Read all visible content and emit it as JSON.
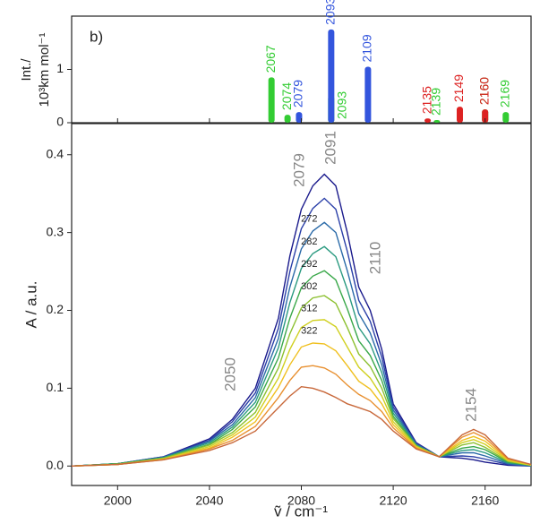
{
  "chart_data": [
    {
      "type": "stick",
      "panel_label": "b)",
      "ylabel": [
        "Int./",
        "10³km mol⁻¹"
      ],
      "xlim": [
        1980,
        2180
      ],
      "ylim": [
        0,
        2.0
      ],
      "yticks": [
        0,
        1
      ],
      "series": [
        {
          "color": "#33cc33",
          "x": [
            2067,
            2074,
            2093,
            2139,
            2160,
            2169
          ],
          "values": [
            0.85,
            0.15,
            0.5,
            0.05,
            0.25,
            0.2
          ]
        },
        {
          "color": "#3355dd",
          "x": [
            2079,
            2093,
            2109
          ],
          "values": [
            0.2,
            1.75,
            1.05
          ]
        },
        {
          "color": "#dd2222",
          "x": [
            2135,
            2149,
            2160
          ],
          "values": [
            0.08,
            0.3,
            0.25
          ]
        }
      ]
    },
    {
      "type": "line",
      "xlabel": "ṽ / cm⁻¹",
      "ylabel": "A / a.u.",
      "xlim": [
        1980,
        2180
      ],
      "xticks": [
        2000,
        2040,
        2080,
        2120,
        2160
      ],
      "ylim": [
        -0.025,
        0.44
      ],
      "yticks": [
        {
          "value": 0,
          "label": "0.0"
        },
        0.1,
        0.2,
        0.3,
        0.4
      ],
      "annotations": [
        "2050",
        "2079",
        "2091",
        "2110",
        "2154"
      ],
      "x": [
        1980,
        2000,
        2020,
        2040,
        2050,
        2060,
        2070,
        2075,
        2080,
        2085,
        2090,
        2095,
        2100,
        2105,
        2110,
        2115,
        2120,
        2130,
        2140,
        2150,
        2155,
        2160,
        2170,
        2180
      ],
      "series": [
        {
          "color": "#1a1a8c",
          "values": [
            0,
            0.003,
            0.012,
            0.035,
            0.06,
            0.1,
            0.19,
            0.27,
            0.33,
            0.36,
            0.375,
            0.36,
            0.3,
            0.23,
            0.2,
            0.15,
            0.08,
            0.03,
            0.012,
            0.01,
            0.008,
            0.005,
            0.001,
            0
          ]
        },
        {
          "name": "272",
          "color": "#2a3fa8",
          "values": [
            0,
            0.003,
            0.012,
            0.033,
            0.057,
            0.094,
            0.177,
            0.25,
            0.305,
            0.331,
            0.344,
            0.33,
            0.276,
            0.213,
            0.186,
            0.14,
            0.076,
            0.029,
            0.012,
            0.013,
            0.012,
            0.009,
            0.002,
            0
          ]
        },
        {
          "name": "282",
          "color": "#2a6aa8",
          "values": [
            0,
            0.003,
            0.011,
            0.032,
            0.053,
            0.088,
            0.164,
            0.23,
            0.279,
            0.302,
            0.313,
            0.3,
            0.251,
            0.196,
            0.171,
            0.13,
            0.072,
            0.028,
            0.012,
            0.017,
            0.017,
            0.013,
            0.003,
            0
          ]
        },
        {
          "name": "292",
          "color": "#2a9a80",
          "values": [
            0,
            0.003,
            0.011,
            0.03,
            0.05,
            0.082,
            0.152,
            0.21,
            0.254,
            0.273,
            0.282,
            0.269,
            0.227,
            0.178,
            0.157,
            0.12,
            0.068,
            0.027,
            0.012,
            0.02,
            0.021,
            0.017,
            0.004,
            0.001
          ]
        },
        {
          "name": "302",
          "color": "#3aa84a",
          "values": [
            0,
            0.003,
            0.01,
            0.028,
            0.047,
            0.076,
            0.139,
            0.19,
            0.229,
            0.244,
            0.251,
            0.239,
            0.202,
            0.161,
            0.142,
            0.11,
            0.064,
            0.026,
            0.012,
            0.023,
            0.025,
            0.021,
            0.005,
            0.001
          ]
        },
        {
          "name": "312",
          "color": "#8cc030",
          "values": [
            0,
            0.002,
            0.01,
            0.027,
            0.043,
            0.069,
            0.126,
            0.17,
            0.203,
            0.216,
            0.219,
            0.209,
            0.178,
            0.144,
            0.128,
            0.1,
            0.061,
            0.026,
            0.012,
            0.027,
            0.03,
            0.024,
            0.006,
            0.001
          ]
        },
        {
          "name": "322",
          "color": "#d0d020",
          "values": [
            0,
            0.002,
            0.009,
            0.025,
            0.04,
            0.063,
            0.113,
            0.15,
            0.178,
            0.187,
            0.188,
            0.179,
            0.153,
            0.127,
            0.113,
            0.09,
            0.057,
            0.025,
            0.012,
            0.03,
            0.034,
            0.028,
            0.007,
            0.001
          ]
        },
        {
          "color": "#f0c020",
          "values": [
            0,
            0.002,
            0.009,
            0.023,
            0.037,
            0.057,
            0.101,
            0.13,
            0.153,
            0.158,
            0.157,
            0.148,
            0.129,
            0.109,
            0.099,
            0.08,
            0.053,
            0.024,
            0.012,
            0.033,
            0.038,
            0.032,
            0.008,
            0.002
          ]
        },
        {
          "color": "#e89030",
          "values": [
            0,
            0.002,
            0.008,
            0.022,
            0.033,
            0.051,
            0.088,
            0.11,
            0.127,
            0.129,
            0.126,
            0.118,
            0.104,
            0.092,
            0.084,
            0.07,
            0.049,
            0.023,
            0.012,
            0.037,
            0.043,
            0.036,
            0.009,
            0.002
          ]
        },
        {
          "color": "#c8683a",
          "values": [
            0,
            0.002,
            0.008,
            0.02,
            0.03,
            0.045,
            0.075,
            0.09,
            0.102,
            0.1,
            0.095,
            0.088,
            0.08,
            0.075,
            0.07,
            0.06,
            0.045,
            0.022,
            0.012,
            0.04,
            0.047,
            0.04,
            0.01,
            0.002
          ]
        }
      ]
    }
  ]
}
